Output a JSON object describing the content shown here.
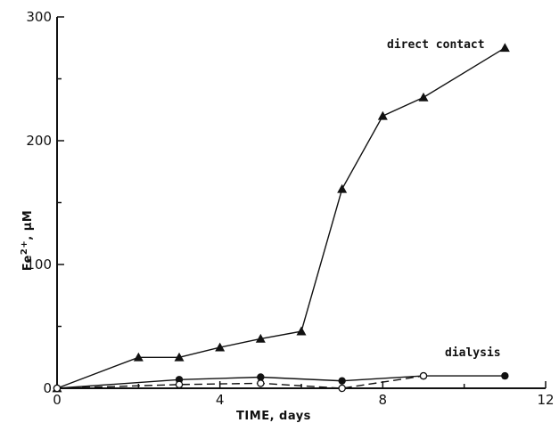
{
  "chart_data": {
    "type": "line",
    "title": "",
    "xlabel": "TIME, days",
    "ylabel": "Fe2+, μM",
    "ylabel_parts": {
      "base": "Fe",
      "sup": "2+",
      "unit": ", μM"
    },
    "xlim": [
      0,
      12
    ],
    "ylim": [
      0,
      300
    ],
    "xticks": [
      0,
      4,
      8,
      12
    ],
    "yticks": [
      0,
      100,
      200,
      300
    ],
    "xtick_labels": [
      "0",
      "4",
      "8",
      "12"
    ],
    "ytick_labels": [
      "0",
      "100",
      "200",
      "300"
    ],
    "grid": false,
    "legend": "none",
    "series": [
      {
        "name": "direct contact",
        "marker": "triangle-filled",
        "line": "solid",
        "x": [
          0,
          2,
          3,
          4,
          5,
          6,
          7,
          8,
          9,
          11
        ],
        "y": [
          0,
          25,
          25,
          33,
          40,
          46,
          161,
          220,
          235,
          275
        ]
      },
      {
        "name": "dialysis",
        "marker": "circle-filled",
        "line": "solid",
        "x": [
          0,
          3,
          5,
          7,
          9,
          11
        ],
        "y": [
          0,
          7,
          9,
          6,
          10,
          10
        ]
      },
      {
        "name": "",
        "marker": "circle-open",
        "line": "dashed",
        "x": [
          0,
          3,
          5,
          7,
          9
        ],
        "y": [
          0,
          3,
          4,
          0,
          10
        ]
      }
    ]
  }
}
